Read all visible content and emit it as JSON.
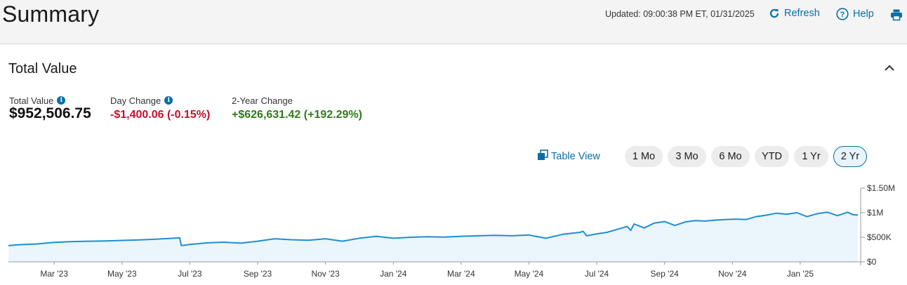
{
  "header": {
    "title": "Summary",
    "updated": "Updated: 09:00:38 PM ET, 01/31/2025",
    "refresh_label": "Refresh",
    "help_label": "Help",
    "refresh_icon": "refresh-icon",
    "help_icon": "help-icon",
    "print_icon": "printer-icon"
  },
  "section": {
    "title": "Total Value",
    "collapse_icon": "chevron-up-icon"
  },
  "metrics": {
    "total_label": "Total Value",
    "total_value": "$952,506.75",
    "day_label": "Day Change",
    "day_value": "-$1,400.06 (-0.15%)",
    "two_year_label": "2-Year Change",
    "two_year_value": "+$626,631.42 (+192.29%)"
  },
  "controls": {
    "table_view_label": "Table View",
    "ranges": [
      "1 Mo",
      "3 Mo",
      "6 Mo",
      "YTD",
      "1 Yr",
      "2 Yr"
    ],
    "selected_range": "2 Yr"
  },
  "colors": {
    "accent": "#0a6ea8",
    "negative": "#c8102e",
    "positive": "#2e7d1a",
    "line": "#1f8fd0",
    "area": "#eaf5fc"
  },
  "chart_data": {
    "type": "area",
    "y_ticks": [
      "$1.50M",
      "$1M",
      "$500K",
      "$0"
    ],
    "y_tick_values": [
      1500000,
      1000000,
      500000,
      0
    ],
    "ylim": [
      0,
      1500000
    ],
    "x_ticks": [
      "Mar '23",
      "May '23",
      "Jul '23",
      "Sep '23",
      "Nov '23",
      "Jan '24",
      "Mar '24",
      "May '24",
      "Jul '24",
      "Sep '24",
      "Nov '24",
      "Jan '25"
    ],
    "x_tick_months": [
      2,
      4,
      6,
      8,
      10,
      12,
      14,
      16,
      18,
      20,
      22,
      24
    ],
    "series": [
      {
        "x": [
          0.65,
          1.0,
          1.5,
          2.0,
          2.5,
          3.0,
          3.5,
          4.0,
          4.5,
          5.0,
          5.5,
          5.7,
          5.75,
          6.0,
          6.5,
          7.0,
          7.5,
          8.0,
          8.5,
          9.0,
          9.5,
          10.0,
          10.5,
          11.0,
          11.5,
          12.0,
          12.5,
          13.0,
          13.5,
          14.0,
          14.5,
          15.0,
          15.5,
          16.0,
          16.5,
          17.0,
          17.5,
          17.6,
          17.7,
          18.0,
          18.3,
          18.6,
          18.9,
          19.0,
          19.1,
          19.4,
          19.7,
          20.0,
          20.3,
          20.6,
          20.9,
          21.2,
          21.5,
          21.8,
          22.1,
          22.4,
          22.7,
          23.0,
          23.3,
          23.6,
          23.9,
          24.2,
          24.5,
          24.8,
          25.1,
          25.4,
          25.55,
          25.7
        ],
        "y": [
          330000,
          350000,
          365000,
          395000,
          410000,
          420000,
          425000,
          435000,
          445000,
          460000,
          480000,
          490000,
          330000,
          355000,
          385000,
          400000,
          380000,
          420000,
          470000,
          450000,
          440000,
          470000,
          420000,
          480000,
          520000,
          480000,
          500000,
          510000,
          505000,
          520000,
          530000,
          540000,
          530000,
          545000,
          480000,
          560000,
          600000,
          620000,
          530000,
          570000,
          600000,
          660000,
          720000,
          640000,
          770000,
          690000,
          790000,
          820000,
          740000,
          810000,
          840000,
          830000,
          850000,
          860000,
          870000,
          860000,
          920000,
          950000,
          990000,
          970000,
          1000000,
          920000,
          980000,
          1010000,
          940000,
          1010000,
          960000,
          952000
        ]
      }
    ],
    "grid": false,
    "legend": "none"
  }
}
